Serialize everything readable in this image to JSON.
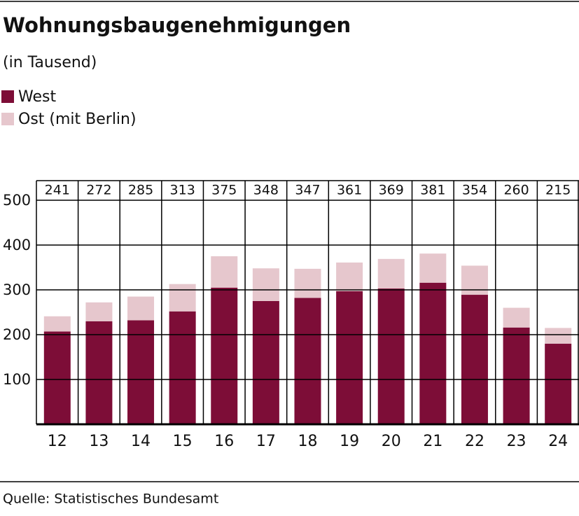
{
  "chart_data": {
    "type": "stacked-bar",
    "title": "Wohnungsbaugenehmigungen",
    "subtitle": "(in Tausend)",
    "categories": [
      "12",
      "13",
      "14",
      "15",
      "16",
      "17",
      "18",
      "19",
      "20",
      "21",
      "22",
      "23",
      "24"
    ],
    "series": [
      {
        "name": "West",
        "color": "#7d0d37",
        "values": [
          207,
          230,
          232,
          252,
          305,
          275,
          282,
          297,
          303,
          316,
          289,
          216,
          180
        ]
      },
      {
        "name": "Ost (mit Berlin)",
        "color": "#e6c7cd",
        "values": [
          34,
          42,
          53,
          61,
          70,
          73,
          65,
          64,
          66,
          65,
          65,
          44,
          35
        ]
      }
    ],
    "totals": [
      241,
      272,
      285,
      313,
      375,
      348,
      347,
      361,
      369,
      381,
      354,
      260,
      215
    ],
    "ylim": [
      0,
      500
    ],
    "yticks": [
      100,
      200,
      300,
      400,
      500
    ],
    "grid": true,
    "source": "Quelle: Statistisches Bundesamt"
  }
}
